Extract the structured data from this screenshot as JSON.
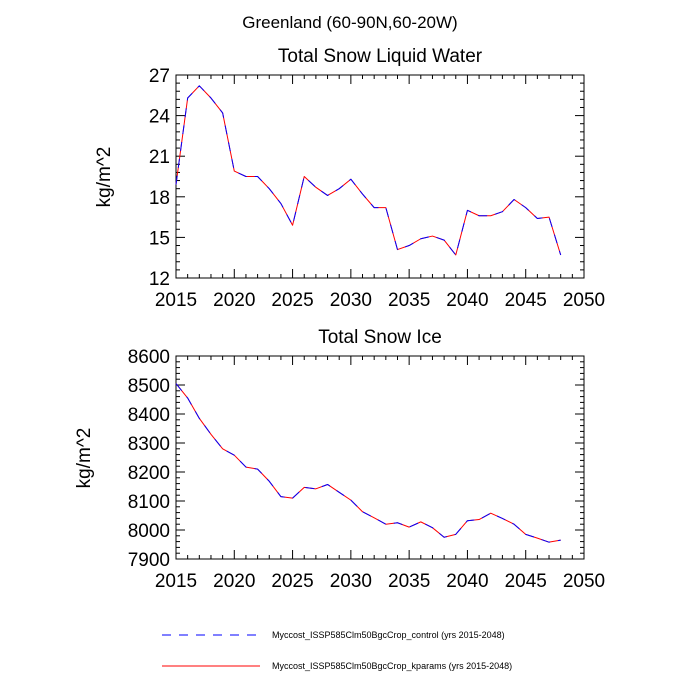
{
  "figure": {
    "suptitle": "Greenland (60-90N,60-20W)"
  },
  "chart_data": [
    {
      "type": "line",
      "title": "Total Snow Liquid Water",
      "xlabel": "",
      "ylabel": "kg/m^2",
      "xlim": [
        2015,
        2050
      ],
      "ylim": [
        12,
        27
      ],
      "xticks": [
        2015,
        2020,
        2025,
        2030,
        2035,
        2040,
        2045,
        2050
      ],
      "yticks": [
        12,
        15,
        18,
        21,
        24,
        27
      ],
      "x": [
        2015,
        2016,
        2017,
        2018,
        2019,
        2020,
        2021,
        2022,
        2023,
        2024,
        2025,
        2026,
        2027,
        2028,
        2029,
        2030,
        2031,
        2032,
        2033,
        2034,
        2035,
        2036,
        2037,
        2038,
        2039,
        2040,
        2041,
        2042,
        2043,
        2044,
        2045,
        2046,
        2047,
        2048
      ],
      "series": [
        {
          "name": "Myccost_ISSP585Clm50BgcCrop_control (yrs 2015-2048)",
          "color": "#0000ff",
          "style": "dashed",
          "values": [
            18.9,
            25.3,
            26.2,
            25.3,
            24.2,
            19.9,
            19.5,
            19.5,
            18.6,
            17.5,
            15.9,
            19.5,
            18.7,
            18.1,
            18.6,
            19.3,
            18.2,
            17.2,
            17.2,
            14.1,
            14.4,
            14.9,
            15.1,
            14.8,
            13.7,
            17.0,
            16.6,
            16.6,
            16.9,
            17.8,
            17.2,
            16.4,
            16.5,
            13.7
          ]
        },
        {
          "name": "Myccost_ISSP585Clm50BgcCrop_kparams (yrs 2015-2048)",
          "color": "#ff0000",
          "style": "solid",
          "values": [
            18.9,
            25.3,
            26.2,
            25.3,
            24.2,
            19.9,
            19.5,
            19.5,
            18.6,
            17.5,
            15.9,
            19.5,
            18.7,
            18.1,
            18.6,
            19.3,
            18.2,
            17.2,
            17.2,
            14.1,
            14.4,
            14.9,
            15.1,
            14.8,
            13.7,
            17.0,
            16.6,
            16.6,
            16.9,
            17.8,
            17.2,
            16.4,
            16.5,
            13.7
          ]
        }
      ]
    },
    {
      "type": "line",
      "title": "Total Snow Ice",
      "xlabel": "",
      "ylabel": "kg/m^2",
      "xlim": [
        2015,
        2050
      ],
      "ylim": [
        7900,
        8600
      ],
      "xticks": [
        2015,
        2020,
        2025,
        2030,
        2035,
        2040,
        2045,
        2050
      ],
      "yticks": [
        7900,
        8000,
        8100,
        8200,
        8300,
        8400,
        8500,
        8600
      ],
      "x": [
        2015,
        2016,
        2017,
        2018,
        2019,
        2020,
        2021,
        2022,
        2023,
        2024,
        2025,
        2026,
        2027,
        2028,
        2029,
        2030,
        2031,
        2032,
        2033,
        2034,
        2035,
        2036,
        2037,
        2038,
        2039,
        2040,
        2041,
        2042,
        2043,
        2044,
        2045,
        2046,
        2047,
        2048
      ],
      "series": [
        {
          "name": "Myccost_ISSP585Clm50BgcCrop_control (yrs 2015-2048)",
          "color": "#0000ff",
          "style": "dashed",
          "values": [
            8505,
            8455,
            8385,
            8330,
            8280,
            8258,
            8217,
            8210,
            8168,
            8115,
            8110,
            8147,
            8142,
            8157,
            8130,
            8103,
            8063,
            8042,
            8020,
            8025,
            8010,
            8028,
            8008,
            7975,
            7985,
            8032,
            8036,
            8058,
            8040,
            8020,
            7985,
            7972,
            7958,
            7965
          ]
        },
        {
          "name": "Myccost_ISSP585Clm50BgcCrop_kparams (yrs 2015-2048)",
          "color": "#ff0000",
          "style": "solid",
          "values": [
            8505,
            8455,
            8385,
            8330,
            8280,
            8258,
            8217,
            8210,
            8168,
            8115,
            8110,
            8147,
            8142,
            8157,
            8130,
            8103,
            8063,
            8042,
            8020,
            8025,
            8010,
            8028,
            8008,
            7975,
            7985,
            8032,
            8036,
            8058,
            8040,
            8020,
            7985,
            7972,
            7958,
            7965
          ]
        }
      ]
    }
  ]
}
